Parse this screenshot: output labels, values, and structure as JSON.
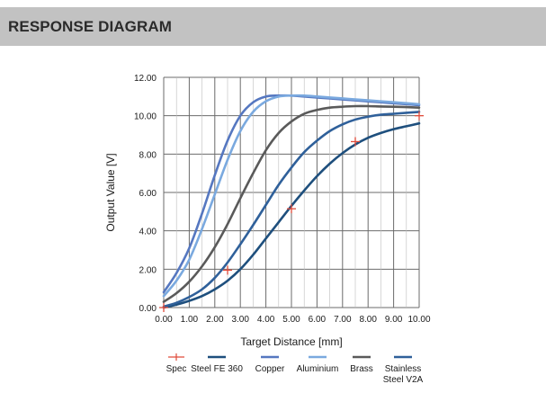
{
  "header": {
    "title": "RESPONSE DIAGRAM"
  },
  "chart_data": {
    "type": "line",
    "title": "",
    "xlabel": "Target Distance  [mm]",
    "ylabel": "Output Value  [V]",
    "xlim": [
      0,
      10
    ],
    "ylim": [
      0,
      12
    ],
    "grid": true,
    "xticks": [
      "0.00",
      "1.00",
      "2.00",
      "3.00",
      "4.00",
      "5.00",
      "6.00",
      "7.00",
      "8.00",
      "9.00",
      "10.00"
    ],
    "yticks": [
      "0.00",
      "2.00",
      "4.00",
      "6.00",
      "8.00",
      "10.00",
      "12.00"
    ],
    "x": [
      0,
      0.5,
      1,
      1.5,
      2,
      2.5,
      3,
      3.5,
      4,
      4.5,
      5,
      5.5,
      6,
      6.5,
      7,
      7.5,
      8,
      8.5,
      9,
      9.5,
      10
    ],
    "series": [
      {
        "name": "Steel FE 360",
        "color": "#1e4f7d",
        "values": [
          0.0,
          0.15,
          0.35,
          0.6,
          0.95,
          1.4,
          2.0,
          2.75,
          3.6,
          4.45,
          5.3,
          6.1,
          6.85,
          7.5,
          8.05,
          8.5,
          8.85,
          9.1,
          9.3,
          9.45,
          9.6
        ]
      },
      {
        "name": "Copper",
        "color": "#5577c0",
        "values": [
          0.8,
          1.8,
          3.1,
          4.9,
          6.9,
          8.7,
          10.0,
          10.7,
          11.0,
          11.05,
          11.05,
          11.0,
          10.95,
          10.9,
          10.85,
          10.8,
          10.75,
          10.7,
          10.65,
          10.6,
          10.55
        ]
      },
      {
        "name": "Aluminium",
        "color": "#7aa9df",
        "values": [
          0.6,
          1.4,
          2.5,
          4.1,
          5.9,
          7.7,
          9.2,
          10.2,
          10.75,
          11.0,
          11.05,
          11.05,
          11.0,
          10.95,
          10.9,
          10.85,
          10.8,
          10.75,
          10.7,
          10.65,
          10.6
        ]
      },
      {
        "name": "Brass",
        "color": "#5a5a5a",
        "values": [
          0.3,
          0.75,
          1.35,
          2.15,
          3.15,
          4.35,
          5.7,
          7.0,
          8.2,
          9.1,
          9.7,
          10.1,
          10.3,
          10.42,
          10.47,
          10.5,
          10.5,
          10.48,
          10.47,
          10.45,
          10.42
        ]
      },
      {
        "name": "Stainless Steel V2A",
        "color": "#2f609a",
        "values": [
          0.05,
          0.25,
          0.55,
          0.95,
          1.55,
          2.35,
          3.3,
          4.3,
          5.35,
          6.4,
          7.3,
          8.1,
          8.7,
          9.2,
          9.55,
          9.8,
          9.95,
          10.05,
          10.1,
          10.15,
          10.2
        ]
      }
    ],
    "spec": {
      "name": "Spec",
      "color": "#e04b3a",
      "points": [
        [
          0,
          0
        ],
        [
          2.5,
          1.95
        ],
        [
          5,
          5.15
        ],
        [
          7.5,
          8.65
        ],
        [
          10,
          10.0
        ]
      ]
    },
    "legend": {
      "placement": "bottom",
      "items": [
        {
          "label": "Spec",
          "kind": "spec"
        },
        {
          "label": "Steel FE 360",
          "kind": "line",
          "color": "#1e4f7d"
        },
        {
          "label": "Copper",
          "kind": "line",
          "color": "#5577c0"
        },
        {
          "label": "Aluminium",
          "kind": "line",
          "color": "#7aa9df"
        },
        {
          "label": "Brass",
          "kind": "line",
          "color": "#5a5a5a"
        },
        {
          "label": "Stainless",
          "label2": "Steel V2A",
          "kind": "line",
          "color": "#2f609a"
        }
      ]
    }
  }
}
